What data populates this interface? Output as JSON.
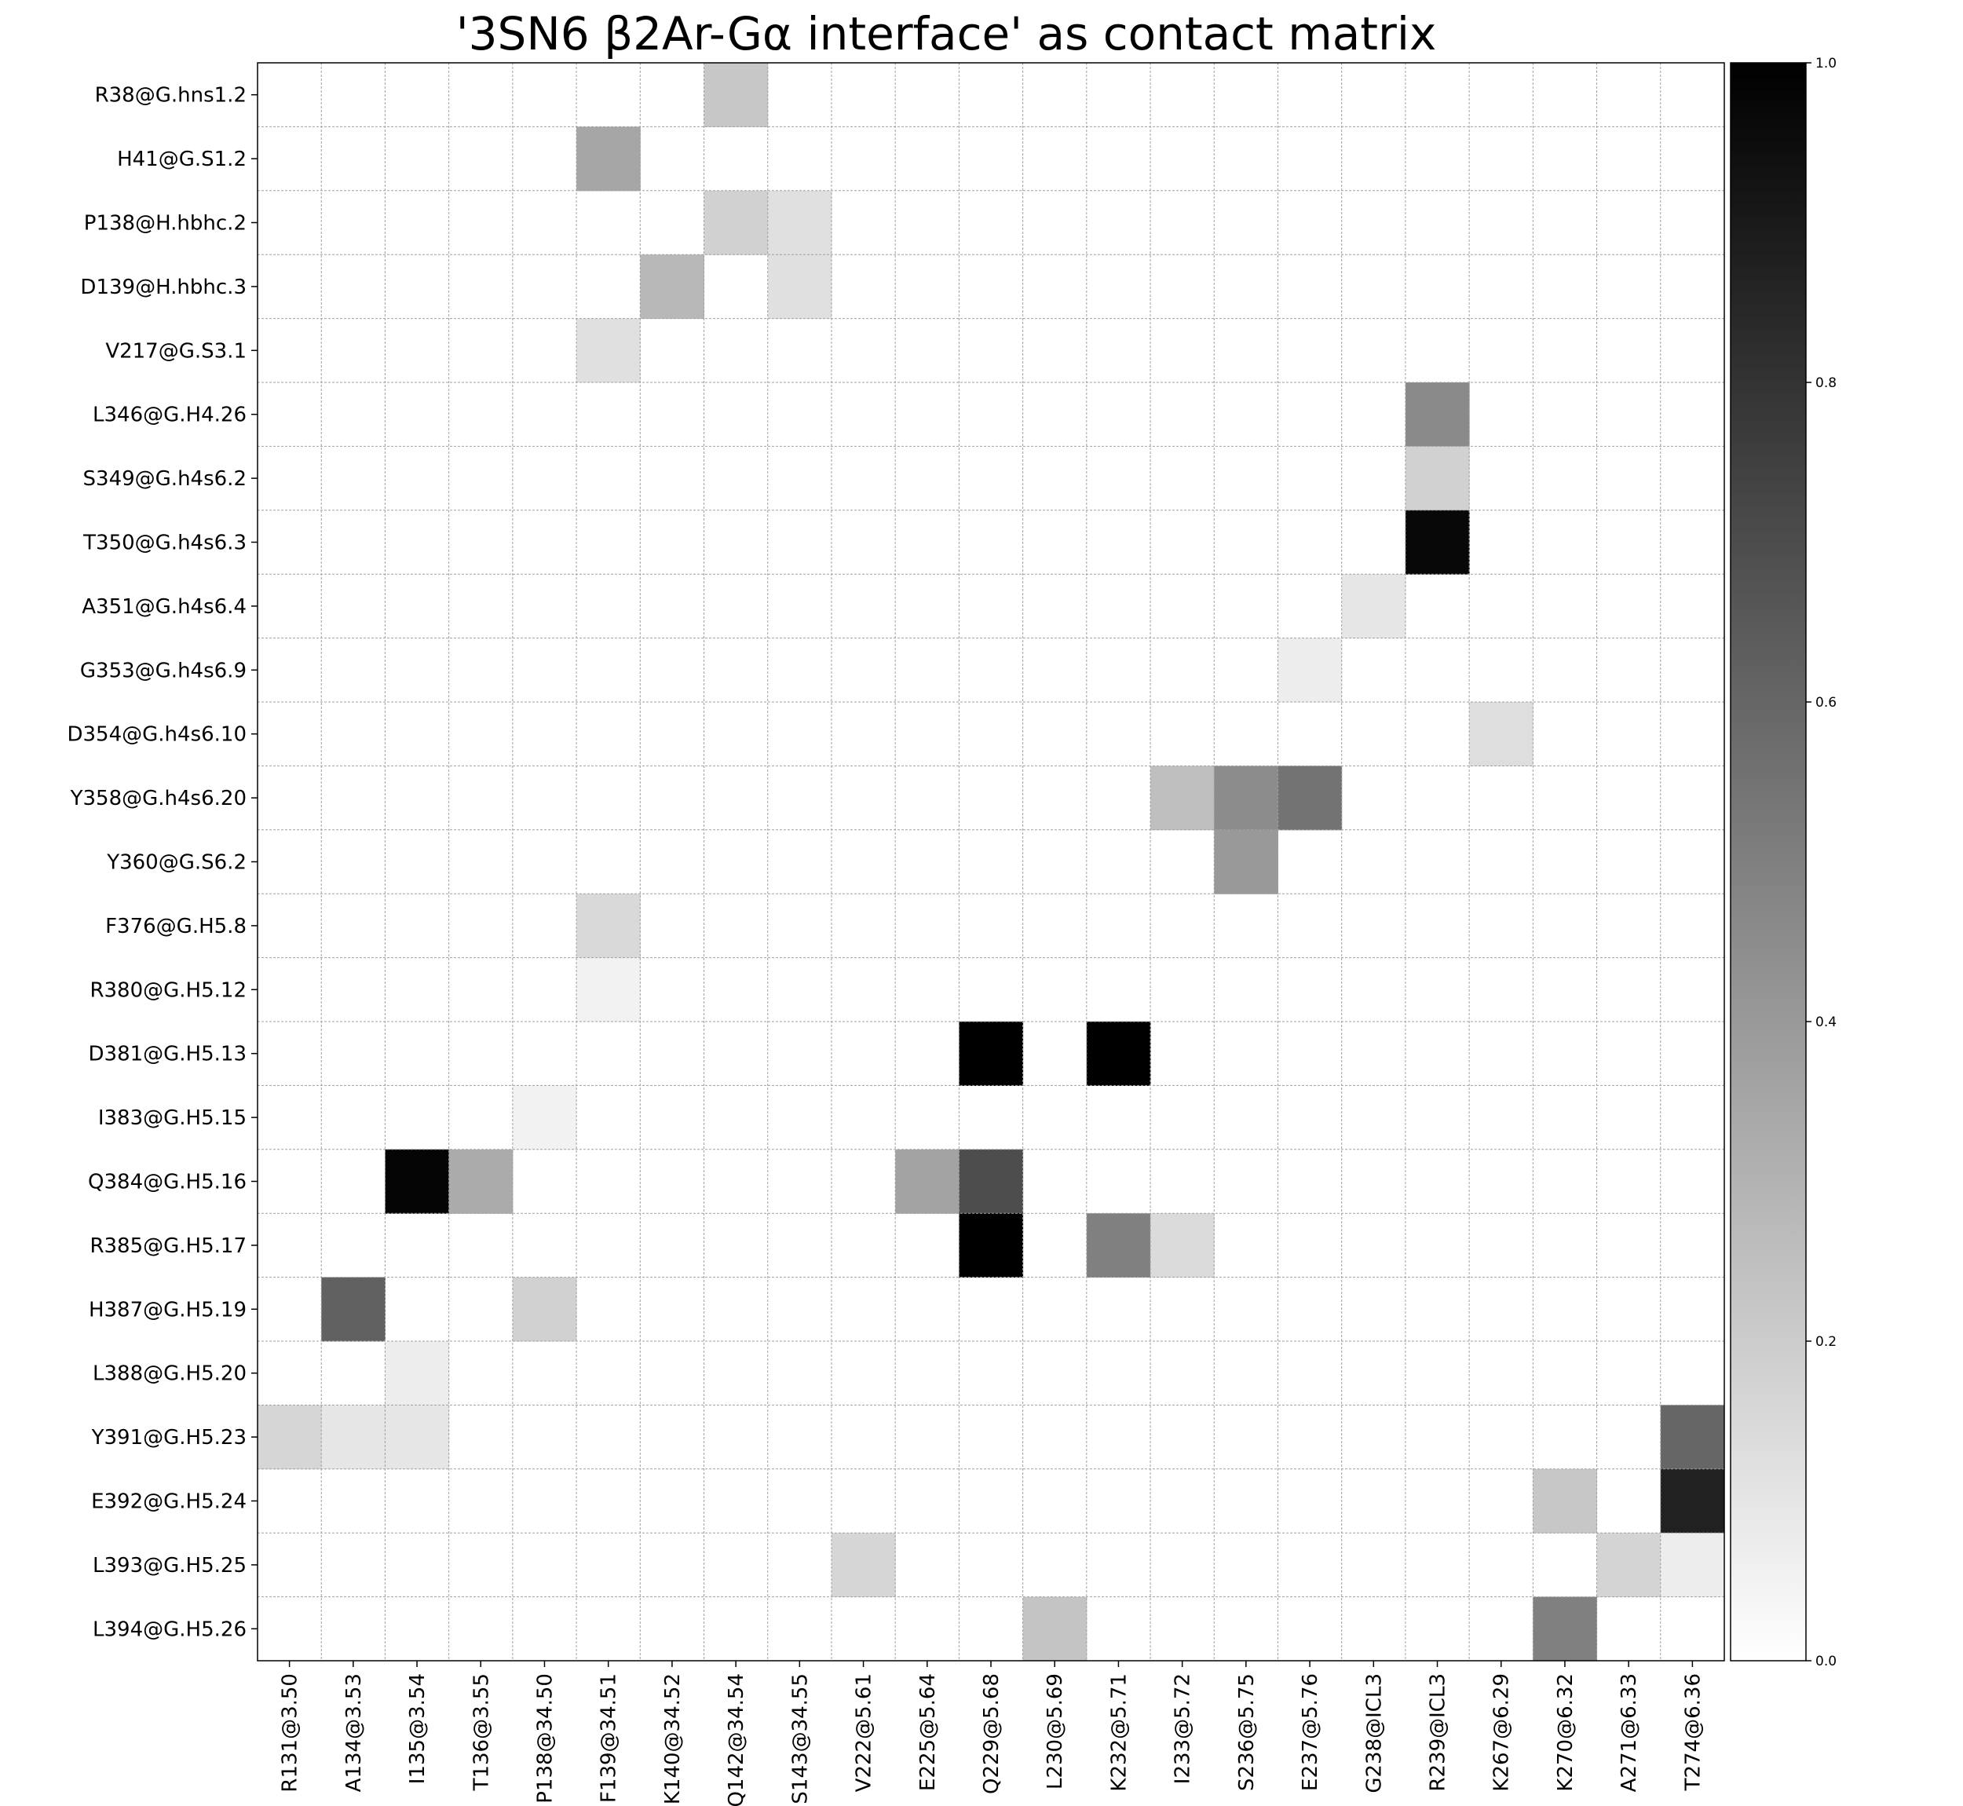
{
  "chart_data": {
    "type": "heatmap",
    "title": "'3SN6 β2Ar-Gα interface'  as contact matrix",
    "xlabel": "",
    "ylabel": "",
    "colormap": "gray_r",
    "grid": true,
    "colorbar": {
      "range": [
        0.0,
        1.0
      ],
      "ticks": [
        0.0,
        0.2,
        0.4,
        0.6,
        0.8,
        1.0
      ],
      "placement": "right"
    },
    "x_labels": [
      "R131@3.50",
      "A134@3.53",
      "I135@3.54",
      "T136@3.55",
      "P138@34.50",
      "F139@34.51",
      "K140@34.52",
      "Q142@34.54",
      "S143@34.55",
      "V222@5.61",
      "E225@5.64",
      "Q229@5.68",
      "L230@5.69",
      "K232@5.71",
      "I233@5.72",
      "S236@5.75",
      "E237@5.76",
      "G238@ICL3",
      "R239@ICL3",
      "K267@6.29",
      "K270@6.32",
      "A271@6.33",
      "T274@6.36"
    ],
    "y_labels": [
      "R38@G.hns1.2",
      "H41@G.S1.2",
      "P138@H.hbhc.2",
      "D139@H.hbhc.3",
      "V217@G.S3.1",
      "L346@G.H4.26",
      "S349@G.h4s6.2",
      "T350@G.h4s6.3",
      "A351@G.h4s6.4",
      "G353@G.h4s6.9",
      "D354@G.h4s6.10",
      "Y358@G.h4s6.20",
      "Y360@G.S6.2",
      "F376@G.H5.8",
      "R380@G.H5.12",
      "D381@G.H5.13",
      "I383@G.H5.15",
      "Q384@G.H5.16",
      "R385@G.H5.17",
      "H387@G.H5.19",
      "L388@G.H5.20",
      "Y391@G.H5.23",
      "E392@G.H5.24",
      "L393@G.H5.25",
      "L394@G.H5.26"
    ],
    "cells": [
      {
        "row": 0,
        "col": 7,
        "value": 0.22
      },
      {
        "row": 1,
        "col": 5,
        "value": 0.35
      },
      {
        "row": 2,
        "col": 7,
        "value": 0.18
      },
      {
        "row": 2,
        "col": 8,
        "value": 0.12
      },
      {
        "row": 3,
        "col": 6,
        "value": 0.28
      },
      {
        "row": 3,
        "col": 8,
        "value": 0.12
      },
      {
        "row": 4,
        "col": 5,
        "value": 0.12
      },
      {
        "row": 5,
        "col": 18,
        "value": 0.46
      },
      {
        "row": 6,
        "col": 18,
        "value": 0.18
      },
      {
        "row": 7,
        "col": 18,
        "value": 0.97
      },
      {
        "row": 8,
        "col": 17,
        "value": 0.1
      },
      {
        "row": 9,
        "col": 16,
        "value": 0.07
      },
      {
        "row": 10,
        "col": 19,
        "value": 0.13
      },
      {
        "row": 11,
        "col": 14,
        "value": 0.25
      },
      {
        "row": 11,
        "col": 15,
        "value": 0.45
      },
      {
        "row": 11,
        "col": 16,
        "value": 0.55
      },
      {
        "row": 12,
        "col": 15,
        "value": 0.4
      },
      {
        "row": 13,
        "col": 5,
        "value": 0.15
      },
      {
        "row": 14,
        "col": 5,
        "value": 0.05
      },
      {
        "row": 15,
        "col": 11,
        "value": 1.0
      },
      {
        "row": 15,
        "col": 13,
        "value": 1.0
      },
      {
        "row": 16,
        "col": 4,
        "value": 0.05
      },
      {
        "row": 17,
        "col": 2,
        "value": 0.98
      },
      {
        "row": 17,
        "col": 3,
        "value": 0.33
      },
      {
        "row": 17,
        "col": 10,
        "value": 0.36
      },
      {
        "row": 17,
        "col": 11,
        "value": 0.7
      },
      {
        "row": 18,
        "col": 11,
        "value": 1.0
      },
      {
        "row": 18,
        "col": 13,
        "value": 0.5
      },
      {
        "row": 18,
        "col": 14,
        "value": 0.14
      },
      {
        "row": 19,
        "col": 1,
        "value": 0.62
      },
      {
        "row": 19,
        "col": 4,
        "value": 0.18
      },
      {
        "row": 20,
        "col": 2,
        "value": 0.07
      },
      {
        "row": 21,
        "col": 0,
        "value": 0.16
      },
      {
        "row": 21,
        "col": 1,
        "value": 0.1
      },
      {
        "row": 21,
        "col": 2,
        "value": 0.1
      },
      {
        "row": 21,
        "col": 22,
        "value": 0.6
      },
      {
        "row": 22,
        "col": 20,
        "value": 0.22
      },
      {
        "row": 22,
        "col": 22,
        "value": 0.87
      },
      {
        "row": 23,
        "col": 9,
        "value": 0.16
      },
      {
        "row": 23,
        "col": 21,
        "value": 0.17
      },
      {
        "row": 23,
        "col": 22,
        "value": 0.07
      },
      {
        "row": 24,
        "col": 12,
        "value": 0.23
      },
      {
        "row": 24,
        "col": 20,
        "value": 0.5
      }
    ]
  }
}
